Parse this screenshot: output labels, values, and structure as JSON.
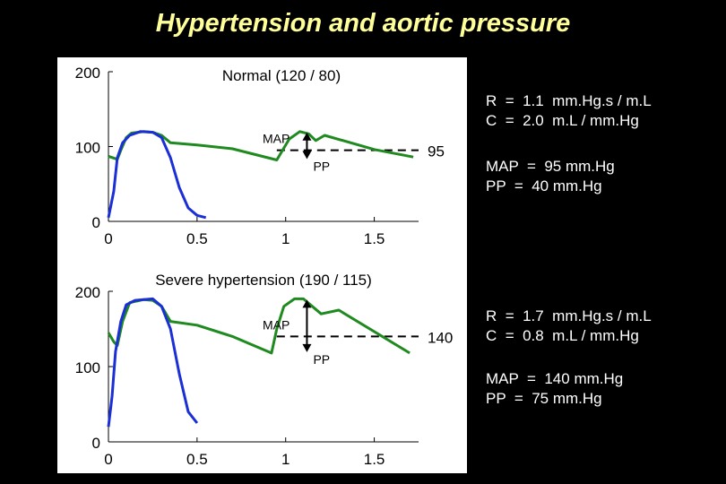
{
  "title": "Hypertension and aortic pressure",
  "colors": {
    "aortic": "#1f8a1f",
    "ventricular": "#1a2fd6",
    "annotation": "#000000",
    "background": "#000000",
    "panel": "#ffffff",
    "title": "#ffff99"
  },
  "chart_data": [
    {
      "type": "line",
      "title": "Normal (120 / 80)",
      "xlabel": "",
      "ylabel": "",
      "xlim": [
        0,
        1.75
      ],
      "ylim": [
        0,
        200
      ],
      "x_ticks": [
        "0",
        "0.5",
        "1",
        "1.5"
      ],
      "y_ticks": [
        "0",
        "100",
        "200"
      ],
      "grid": false,
      "map_value": 95,
      "map_label": "95",
      "annotations": {
        "map": "MAP",
        "pp": "PP"
      },
      "series": [
        {
          "color": "green",
          "x": [
            0,
            0.05,
            0.07,
            0.1,
            0.13,
            0.2,
            0.25,
            0.3,
            0.35,
            0.5,
            0.7,
            0.95,
            1.02,
            1.08,
            1.13,
            1.17,
            1.22,
            1.5,
            1.72
          ],
          "y": [
            87,
            83,
            95,
            112,
            118,
            120,
            119,
            115,
            105,
            102,
            97,
            82,
            110,
            120,
            117,
            108,
            115,
            96,
            86
          ]
        },
        {
          "color": "blue",
          "x": [
            0,
            0.03,
            0.05,
            0.08,
            0.12,
            0.18,
            0.25,
            0.3,
            0.35,
            0.4,
            0.45,
            0.5,
            0.55
          ],
          "y": [
            5,
            40,
            85,
            105,
            115,
            120,
            119,
            112,
            85,
            45,
            18,
            8,
            5
          ]
        }
      ],
      "info": {
        "resistance": "R  =  1.1  mm.Hg.s / m.L",
        "compliance": "C  =  2.0  m.L / mm.Hg",
        "map": "MAP  =  95 mm.Hg",
        "pp": "PP  =  40 mm.Hg"
      }
    },
    {
      "type": "line",
      "title": "Severe hypertension (190 / 115)",
      "xlabel": "",
      "ylabel": "",
      "xlim": [
        0,
        1.75
      ],
      "ylim": [
        0,
        200
      ],
      "x_ticks": [
        "0",
        "0.5",
        "1",
        "1.5"
      ],
      "y_ticks": [
        "0",
        "100",
        "200"
      ],
      "grid": false,
      "map_value": 140,
      "map_label": "140",
      "annotations": {
        "map": "MAP",
        "pp": "PP"
      },
      "series": [
        {
          "color": "green",
          "x": [
            0,
            0.03,
            0.05,
            0.08,
            0.12,
            0.2,
            0.25,
            0.3,
            0.35,
            0.5,
            0.7,
            0.92,
            0.95,
            0.99,
            1.05,
            1.1,
            1.15,
            1.2,
            1.3,
            1.7
          ],
          "y": [
            145,
            133,
            128,
            160,
            185,
            189,
            188,
            180,
            160,
            155,
            140,
            118,
            150,
            180,
            190,
            190,
            180,
            170,
            175,
            118
          ]
        },
        {
          "color": "blue",
          "x": [
            0,
            0.02,
            0.04,
            0.07,
            0.1,
            0.15,
            0.25,
            0.3,
            0.35,
            0.4,
            0.45,
            0.5
          ],
          "y": [
            20,
            60,
            120,
            160,
            182,
            188,
            190,
            180,
            150,
            90,
            40,
            25
          ]
        }
      ],
      "info": {
        "resistance": "R  =  1.7  mm.Hg.s / m.L",
        "compliance": "C  =  0.8  m.L / mm.Hg",
        "map": "MAP  =  140 mm.Hg",
        "pp": "PP  =  75 mm.Hg"
      }
    }
  ]
}
